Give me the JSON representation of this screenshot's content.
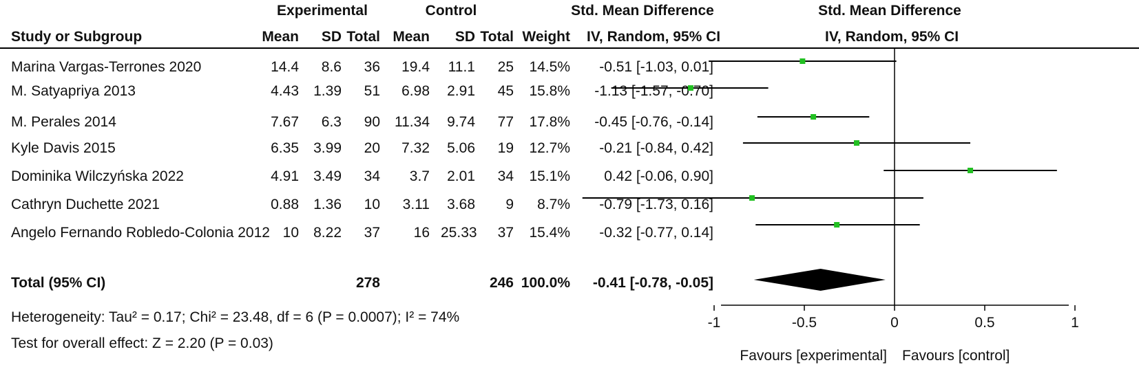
{
  "header": {
    "experimental": "Experimental",
    "control": "Control",
    "smd": "Std. Mean Difference",
    "smd_plot": "Std. Mean Difference",
    "study": "Study or Subgroup",
    "mean_e": "Mean",
    "sd_e": "SD",
    "total_e": "Total",
    "mean_c": "Mean",
    "sd_c": "SD",
    "total_c": "Total",
    "weight": "Weight",
    "ci": "IV, Random, 95% CI",
    "ci_plot": "IV, Random, 95% CI"
  },
  "studies": [
    {
      "name": "Marina Vargas-Terrones 2020",
      "mean_e": "14.4",
      "sd_e": "8.6",
      "total_e": "36",
      "mean_c": "19.4",
      "sd_c": "11.1",
      "total_c": "25",
      "weight": "14.5%",
      "ci": "-0.51 [-1.03, 0.01]"
    },
    {
      "name": "M. Satyapriya 2013",
      "mean_e": "4.43",
      "sd_e": "1.39",
      "total_e": "51",
      "mean_c": "6.98",
      "sd_c": "2.91",
      "total_c": "45",
      "weight": "15.8%",
      "ci": "-1.13 [-1.57, -0.70]"
    },
    {
      "name": "M. Perales 2014",
      "mean_e": "7.67",
      "sd_e": "6.3",
      "total_e": "90",
      "mean_c": "11.34",
      "sd_c": "9.74",
      "total_c": "77",
      "weight": "17.8%",
      "ci": "-0.45 [-0.76, -0.14]"
    },
    {
      "name": "Kyle Davis 2015",
      "mean_e": "6.35",
      "sd_e": "3.99",
      "total_e": "20",
      "mean_c": "7.32",
      "sd_c": "5.06",
      "total_c": "19",
      "weight": "12.7%",
      "ci": "-0.21 [-0.84, 0.42]"
    },
    {
      "name": "Dominika Wilczyńska 2022",
      "mean_e": "4.91",
      "sd_e": "3.49",
      "total_e": "34",
      "mean_c": "3.7",
      "sd_c": "2.01",
      "total_c": "34",
      "weight": "15.1%",
      "ci": "0.42 [-0.06, 0.90]"
    },
    {
      "name": "Cathryn Duchette 2021",
      "mean_e": "0.88",
      "sd_e": "1.36",
      "total_e": "10",
      "mean_c": "3.11",
      "sd_c": "3.68",
      "total_c": "9",
      "weight": "8.7%",
      "ci": "-0.79 [-1.73, 0.16]"
    },
    {
      "name": "Angelo Fernando Robledo-Colonia 2012",
      "mean_e": "10",
      "sd_e": "8.22",
      "total_e": "37",
      "mean_c": "16",
      "sd_c": "25.33",
      "total_c": "37",
      "weight": "15.4%",
      "ci": "-0.32 [-0.77, 0.14]"
    }
  ],
  "total": {
    "label": "Total (95% CI)",
    "total_e": "278",
    "total_c": "246",
    "weight": "100.0%",
    "ci": "-0.41 [-0.78, -0.05]"
  },
  "heterogeneity": "Heterogeneity: Tau² = 0.17; Chi² = 23.48, df = 6 (P = 0.0007); I² = 74%",
  "overall_effect": "Test for overall effect: Z = 2.20 (P = 0.03)",
  "favours_left": "Favours [experimental]",
  "favours_right": "Favours [control]",
  "colors": {
    "marker": "#22c022",
    "line": "#000000",
    "diamond": "#000000"
  },
  "chart_data": {
    "type": "forest",
    "xlim": [
      -1.5,
      1.0
    ],
    "ticks": [
      -1,
      -0.5,
      0,
      0.5,
      1
    ],
    "tick_labels": [
      "-1",
      "-0.5",
      "0",
      "0.5",
      "1"
    ],
    "points": [
      {
        "est": -0.51,
        "lo": -1.03,
        "hi": 0.01
      },
      {
        "est": -1.13,
        "lo": -1.57,
        "hi": -0.7
      },
      {
        "est": -0.45,
        "lo": -0.76,
        "hi": -0.14
      },
      {
        "est": -0.21,
        "lo": -0.84,
        "hi": 0.42
      },
      {
        "est": 0.42,
        "lo": -0.06,
        "hi": 0.9
      },
      {
        "est": -0.79,
        "lo": -1.73,
        "hi": 0.16
      },
      {
        "est": -0.32,
        "lo": -0.77,
        "hi": 0.14
      }
    ],
    "summary": {
      "est": -0.41,
      "lo": -0.78,
      "hi": -0.05
    }
  }
}
